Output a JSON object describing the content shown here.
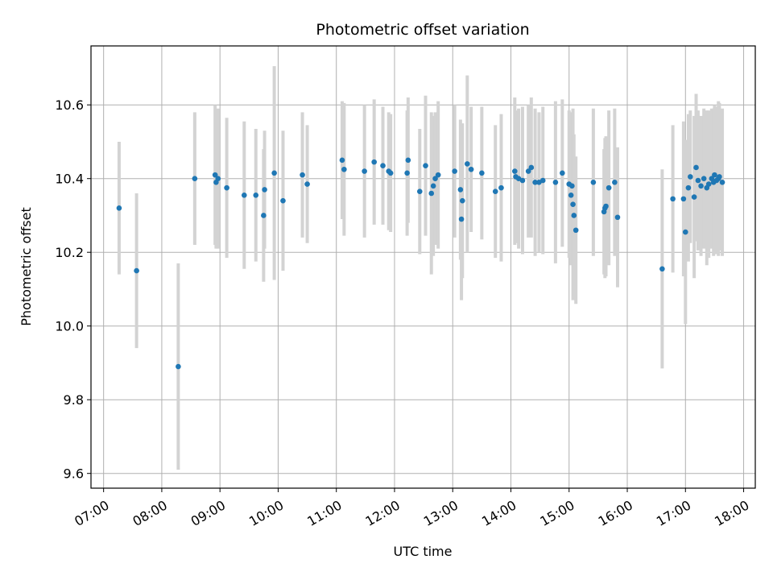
{
  "chart_data": {
    "type": "scatter",
    "title": "Photometric offset variation",
    "xlabel": "UTC time",
    "ylabel": "Photometric offset",
    "x_ticks": [
      "07:00",
      "08:00",
      "09:00",
      "10:00",
      "11:00",
      "12:00",
      "13:00",
      "14:00",
      "15:00",
      "16:00",
      "17:00",
      "18:00"
    ],
    "y_ticks": [
      "9.6",
      "9.8",
      "10.0",
      "10.2",
      "10.4",
      "10.6"
    ],
    "xlim": [
      "06:47",
      "18:12"
    ],
    "ylim": [
      9.56,
      10.76
    ],
    "grid": true,
    "colors": {
      "point": "#1f77b4",
      "errorbar": "#d3d3d3",
      "grid": "#b0b0b0"
    },
    "series": [
      {
        "x": [
          "07:16",
          "07:34",
          "08:17",
          "08:34",
          "08:55",
          "08:56",
          "08:58",
          "09:07",
          "09:25",
          "09:37",
          "09:45",
          "09:46",
          "09:56",
          "10:05",
          "10:25",
          "10:30",
          "11:06",
          "11:08",
          "11:29",
          "11:39",
          "11:48",
          "11:54",
          "11:56",
          "12:13",
          "12:14",
          "12:26",
          "12:32",
          "12:38",
          "12:40",
          "12:42",
          "12:45",
          "13:02",
          "13:08",
          "13:09",
          "13:10",
          "13:15",
          "13:19",
          "13:30",
          "13:44",
          "13:50",
          "14:04",
          "14:05",
          "14:08",
          "14:12",
          "14:18",
          "14:21",
          "14:25",
          "14:29",
          "14:33",
          "14:46",
          "14:53",
          "15:00",
          "15:02",
          "15:03",
          "15:04",
          "15:05",
          "15:07",
          "15:25",
          "15:36",
          "15:37",
          "15:38",
          "15:41",
          "15:47",
          "15:50",
          "16:36",
          "16:47",
          "16:58",
          "17:00",
          "17:03",
          "17:05",
          "17:09",
          "17:11",
          "17:13",
          "17:16",
          "17:19",
          "17:22",
          "17:24",
          "17:27",
          "17:29",
          "17:30",
          "17:32",
          "17:34",
          "17:35",
          "17:38"
        ],
        "y": [
          10.32,
          10.15,
          9.89,
          10.4,
          10.41,
          10.39,
          10.4,
          10.375,
          10.355,
          10.355,
          10.3,
          10.37,
          10.415,
          10.34,
          10.41,
          10.385,
          10.45,
          10.425,
          10.42,
          10.445,
          10.435,
          10.42,
          10.415,
          10.415,
          10.45,
          10.365,
          10.435,
          10.36,
          10.38,
          10.4,
          10.41,
          10.42,
          10.37,
          10.29,
          10.34,
          10.44,
          10.425,
          10.415,
          10.365,
          10.375,
          10.42,
          10.405,
          10.4,
          10.395,
          10.42,
          10.43,
          10.39,
          10.39,
          10.395,
          10.39,
          10.415,
          10.385,
          10.355,
          10.38,
          10.33,
          10.3,
          10.26,
          10.39,
          10.31,
          10.32,
          10.325,
          10.375,
          10.39,
          10.295,
          10.155,
          10.345,
          10.345,
          10.255,
          10.375,
          10.405,
          10.35,
          10.43,
          10.395,
          10.38,
          10.4,
          10.375,
          10.385,
          10.4,
          10.39,
          10.41,
          10.395,
          10.4,
          10.405,
          10.39
        ],
        "err": [
          0.18,
          0.21,
          0.28,
          0.18,
          0.19,
          0.18,
          0.19,
          0.19,
          0.2,
          0.18,
          0.18,
          0.16,
          0.29,
          0.19,
          0.17,
          0.16,
          0.16,
          0.18,
          0.18,
          0.17,
          0.16,
          0.16,
          0.16,
          0.17,
          0.17,
          0.17,
          0.19,
          0.22,
          0.19,
          0.18,
          0.2,
          0.18,
          0.19,
          0.22,
          0.21,
          0.24,
          0.17,
          0.18,
          0.18,
          0.2,
          0.2,
          0.18,
          0.19,
          0.2,
          0.18,
          0.19,
          0.2,
          0.19,
          0.2,
          0.22,
          0.2,
          0.2,
          0.19,
          0.2,
          0.26,
          0.22,
          0.2,
          0.2,
          0.17,
          0.19,
          0.19,
          0.21,
          0.2,
          0.19,
          0.27,
          0.2,
          0.21,
          0.25,
          0.2,
          0.18,
          0.22,
          0.2,
          0.19,
          0.19,
          0.19,
          0.21,
          0.2,
          0.19,
          0.2,
          0.19,
          0.2,
          0.21,
          0.2,
          0.2
        ]
      }
    ]
  }
}
